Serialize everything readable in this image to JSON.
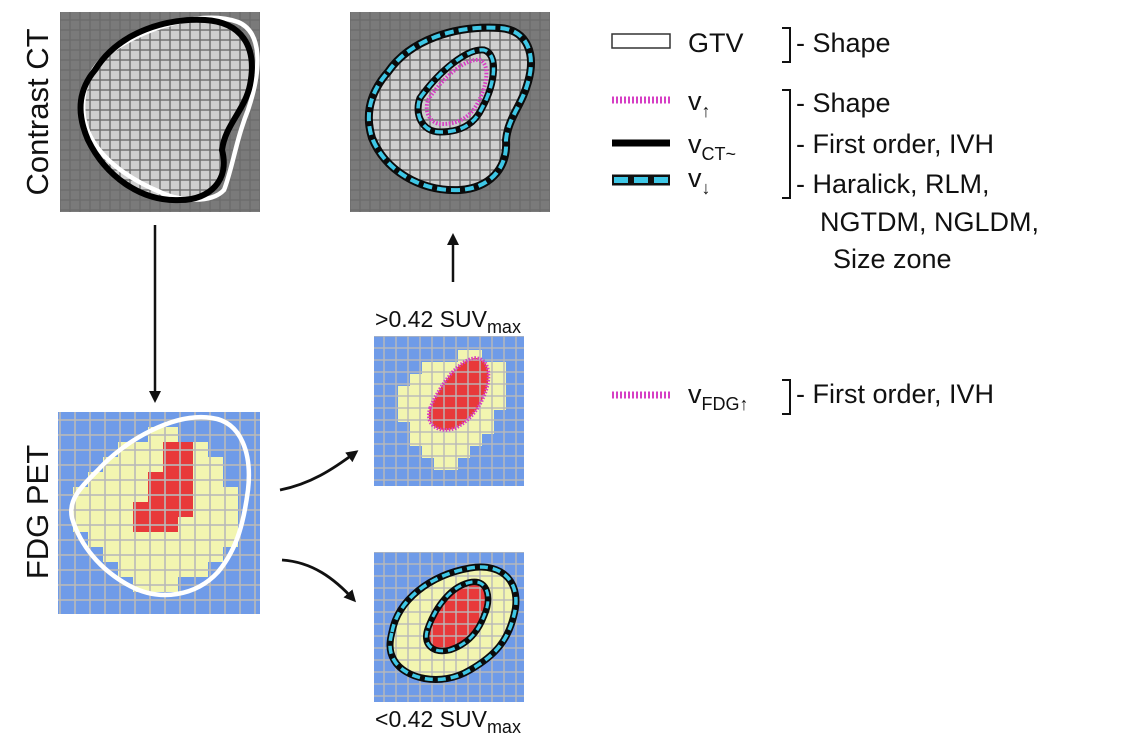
{
  "labels": {
    "ct_side": "Contrast CT",
    "pet_side": "FDG PET",
    "threshold_high": ">0.42 SUV",
    "threshold_high_sub": "max",
    "threshold_low": "<0.42 SUV",
    "threshold_low_sub": "max"
  },
  "legend": {
    "gtv": {
      "name": "GTV",
      "feature": "- Shape"
    },
    "group": [
      {
        "var": "v",
        "sub": "↑",
        "feature": "- Shape"
      },
      {
        "var": "v",
        "sub": "CT~",
        "feature": "- First order, IVH"
      },
      {
        "var": "v",
        "sub": "↓",
        "feature": "- Haralick, RLM,"
      }
    ],
    "group_cont1": "NGTDM, NGLDM,",
    "group_cont2": "Size zone",
    "fdg": {
      "var": "v",
      "sub": "FDG↑",
      "feature": "- First order, IVH"
    }
  },
  "colors": {
    "ct_background": "#7a7a7a",
    "ct_tissue": "#cfcfcf",
    "pet_background": "#6f9be8",
    "pet_mid": "#f2f5b0",
    "pet_hot": "#e8393a",
    "grid_line": "#b8b8b8",
    "magenta": "#d63fc4",
    "cyan": "#3ec7e6"
  }
}
